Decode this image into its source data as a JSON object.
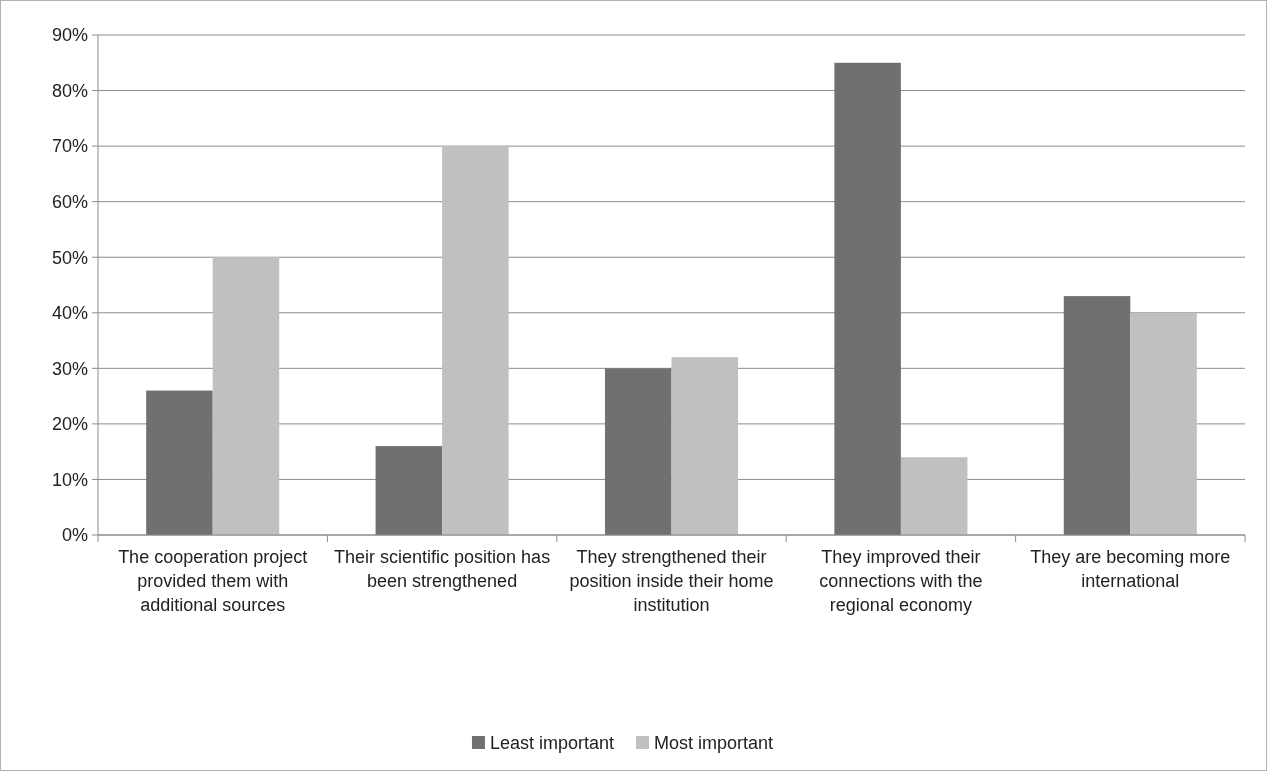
{
  "chart_data": {
    "type": "bar",
    "categories": [
      "The cooperation project provided them with additional sources",
      "Their scientific position has been strengthened",
      "They strengthened their position inside their home institution",
      "They improved their connections with the regional economy",
      "They are becoming more international"
    ],
    "series": [
      {
        "name": "Least important",
        "color": "#707070",
        "values": [
          26,
          16,
          30,
          85,
          43
        ]
      },
      {
        "name": "Most important",
        "color": "#c0c0c0",
        "values": [
          50,
          70,
          32,
          14,
          40
        ]
      }
    ],
    "ylim": [
      0,
      90
    ],
    "yticks": [
      {
        "value": 0,
        "label": "0%"
      },
      {
        "value": 10,
        "label": "10%"
      },
      {
        "value": 20,
        "label": "20%"
      },
      {
        "value": 30,
        "label": "30%"
      },
      {
        "value": 40,
        "label": "40%"
      },
      {
        "value": 50,
        "label": "50%"
      },
      {
        "value": 60,
        "label": "60%"
      },
      {
        "value": 70,
        "label": "70%"
      },
      {
        "value": 80,
        "label": "80%"
      },
      {
        "value": 90,
        "label": "90%"
      }
    ],
    "grid": "y",
    "legend": "bottom"
  }
}
